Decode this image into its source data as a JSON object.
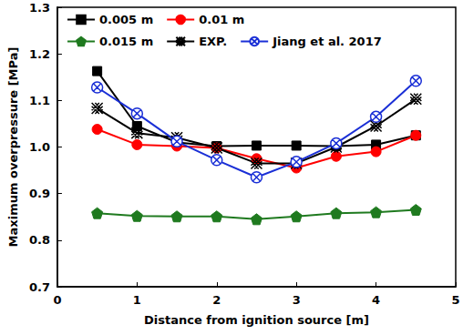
{
  "chart_data": {
    "type": "line",
    "x_label": "Distance from ignition source [m]",
    "y_label": "Maximum overpressure [MPa]",
    "xlim": [
      0,
      5
    ],
    "xticks": [
      0,
      1,
      2,
      3,
      4,
      5
    ],
    "ylim": [
      0.7,
      1.3
    ],
    "yticks": [
      0.7,
      0.8,
      0.9,
      {
        "value": 1,
        "label": "1.0"
      },
      1.1,
      1.2,
      1.3
    ],
    "grid": false,
    "legend": "top",
    "x": [
      0.5,
      1,
      1.5,
      2,
      2.5,
      3,
      3.5,
      4,
      4.5
    ],
    "series": [
      {
        "name": "0.005 m",
        "color": "#000000",
        "marker": "square",
        "line_style": "solid",
        "values": [
          1.163,
          1.045,
          1.01,
          1.002,
          1.003,
          1.003,
          1.002,
          1.005,
          1.025
        ]
      },
      {
        "name": "0.01 m",
        "color": "#ff0000",
        "marker": "circle",
        "line_style": "solid",
        "values": [
          1.038,
          1.005,
          1.002,
          0.998,
          0.975,
          0.955,
          0.98,
          0.99,
          1.025
        ]
      },
      {
        "name": "0.015 m",
        "color": "#1f7a1f",
        "marker": "pentagon",
        "line_style": "solid",
        "values": [
          0.858,
          0.852,
          0.851,
          0.851,
          0.845,
          0.851,
          0.858,
          0.86,
          0.865
        ]
      },
      {
        "name": "EXP.",
        "color": "#000000",
        "marker": "x",
        "line_style": "solid",
        "values": [
          1.083,
          1.03,
          1.02,
          0.998,
          0.965,
          0.965,
          1.0,
          1.045,
          1.103
        ]
      },
      {
        "name": "Jiang et al. 2017",
        "color": "#1a2fd6",
        "marker": "circle_x",
        "line_style": "solid",
        "values": [
          1.128,
          1.072,
          1.012,
          0.972,
          0.935,
          0.968,
          1.008,
          1.065,
          1.142
        ]
      }
    ]
  }
}
